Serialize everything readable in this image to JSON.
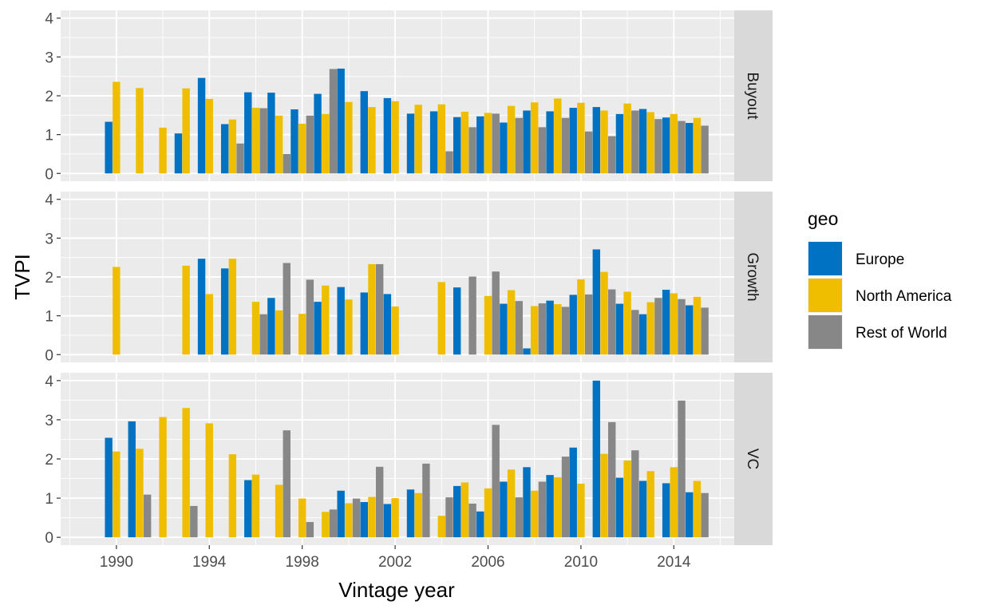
{
  "chart_data": {
    "type": "bar",
    "xlabel": "Vintage year",
    "ylabel": "TVPI",
    "x_ticks": [
      1990,
      1994,
      1998,
      2002,
      2006,
      2010,
      2014
    ],
    "xlim": [
      1987.6,
      2016.6
    ],
    "ylim": [
      -0.2,
      4.2
    ],
    "y_ticks": [
      0,
      1,
      2,
      3,
      4
    ],
    "grid": true,
    "legend": {
      "title": "geo",
      "placement": "right",
      "entries": [
        {
          "name": "Europe",
          "color": "#0072C3"
        },
        {
          "name": "North America",
          "color": "#F0BE00"
        },
        {
          "name": "Rest of World",
          "color": "#878787"
        }
      ]
    },
    "panels": [
      {
        "label": "Buyout",
        "series": [
          {
            "name": "Europe",
            "data": [
              [
                1990,
                1.33
              ],
              [
                1993,
                1.03
              ],
              [
                1994,
                2.46
              ],
              [
                1995,
                1.27
              ],
              [
                1996,
                2.09
              ],
              [
                1997,
                2.08
              ],
              [
                1998,
                1.65
              ],
              [
                1999,
                2.05
              ],
              [
                2000,
                2.7
              ],
              [
                2001,
                2.12
              ],
              [
                2002,
                1.94
              ],
              [
                2003,
                1.54
              ],
              [
                2004,
                1.6
              ],
              [
                2005,
                1.45
              ],
              [
                2006,
                1.47
              ],
              [
                2007,
                1.31
              ],
              [
                2008,
                1.62
              ],
              [
                2009,
                1.6
              ],
              [
                2010,
                1.69
              ],
              [
                2011,
                1.71
              ],
              [
                2012,
                1.53
              ],
              [
                2013,
                1.66
              ],
              [
                2014,
                1.44
              ],
              [
                2015,
                1.3
              ]
            ]
          },
          {
            "name": "North America",
            "data": [
              [
                1990,
                2.36
              ],
              [
                1991,
                2.2
              ],
              [
                1992,
                1.18
              ],
              [
                1993,
                2.19
              ],
              [
                1994,
                1.92
              ],
              [
                1995,
                1.39
              ],
              [
                1996,
                1.69
              ],
              [
                1997,
                1.49
              ],
              [
                1998,
                1.28
              ],
              [
                1999,
                1.53
              ],
              [
                2000,
                1.84
              ],
              [
                2001,
                1.71
              ],
              [
                2002,
                1.86
              ],
              [
                2003,
                1.77
              ],
              [
                2004,
                1.78
              ],
              [
                2005,
                1.59
              ],
              [
                2006,
                1.56
              ],
              [
                2007,
                1.74
              ],
              [
                2008,
                1.83
              ],
              [
                2009,
                1.93
              ],
              [
                2010,
                1.82
              ],
              [
                2011,
                1.62
              ],
              [
                2012,
                1.8
              ],
              [
                2013,
                1.58
              ],
              [
                2014,
                1.53
              ],
              [
                2015,
                1.43
              ]
            ]
          },
          {
            "name": "Rest of World",
            "data": [
              [
                1995,
                0.77
              ],
              [
                1996,
                1.68
              ],
              [
                1997,
                0.5
              ],
              [
                1998,
                1.49
              ],
              [
                1999,
                2.69
              ],
              [
                2004,
                0.57
              ],
              [
                2005,
                1.19
              ],
              [
                2006,
                1.54
              ],
              [
                2007,
                1.43
              ],
              [
                2008,
                1.19
              ],
              [
                2009,
                1.43
              ],
              [
                2010,
                1.08
              ],
              [
                2011,
                0.96
              ],
              [
                2012,
                1.62
              ],
              [
                2013,
                1.4
              ],
              [
                2014,
                1.35
              ],
              [
                2015,
                1.23
              ]
            ]
          }
        ]
      },
      {
        "label": "Growth",
        "series": [
          {
            "name": "Europe",
            "data": [
              [
                1994,
                2.47
              ],
              [
                1995,
                2.22
              ],
              [
                1997,
                1.46
              ],
              [
                1999,
                1.36
              ],
              [
                2000,
                1.74
              ],
              [
                2001,
                1.6
              ],
              [
                2002,
                1.56
              ],
              [
                2005,
                1.73
              ],
              [
                2007,
                1.31
              ],
              [
                2008,
                0.16
              ],
              [
                2009,
                1.39
              ],
              [
                2010,
                1.54
              ],
              [
                2011,
                2.71
              ],
              [
                2012,
                1.31
              ],
              [
                2013,
                1.04
              ],
              [
                2014,
                1.67
              ],
              [
                2015,
                1.27
              ]
            ]
          },
          {
            "name": "North America",
            "data": [
              [
                1990,
                2.26
              ],
              [
                1993,
                2.29
              ],
              [
                1994,
                1.56
              ],
              [
                1995,
                2.47
              ],
              [
                1996,
                1.36
              ],
              [
                1997,
                1.14
              ],
              [
                1998,
                1.05
              ],
              [
                1999,
                1.78
              ],
              [
                2000,
                1.42
              ],
              [
                2001,
                2.33
              ],
              [
                2002,
                1.24
              ],
              [
                2004,
                1.87
              ],
              [
                2006,
                1.51
              ],
              [
                2007,
                1.66
              ],
              [
                2008,
                1.25
              ],
              [
                2009,
                1.3
              ],
              [
                2010,
                1.94
              ],
              [
                2011,
                2.13
              ],
              [
                2012,
                1.62
              ],
              [
                2013,
                1.35
              ],
              [
                2014,
                1.58
              ],
              [
                2015,
                1.49
              ]
            ]
          },
          {
            "name": "Rest of World",
            "data": [
              [
                1996,
                1.04
              ],
              [
                1997,
                2.36
              ],
              [
                1998,
                1.93
              ],
              [
                2001,
                2.33
              ],
              [
                2005,
                2.01
              ],
              [
                2006,
                2.14
              ],
              [
                2007,
                1.38
              ],
              [
                2008,
                1.32
              ],
              [
                2009,
                1.23
              ],
              [
                2010,
                1.55
              ],
              [
                2011,
                1.68
              ],
              [
                2012,
                1.15
              ],
              [
                2013,
                1.46
              ],
              [
                2014,
                1.43
              ],
              [
                2015,
                1.21
              ]
            ]
          }
        ]
      },
      {
        "label": "VC",
        "series": [
          {
            "name": "Europe",
            "data": [
              [
                1990,
                2.54
              ],
              [
                1991,
                2.96
              ],
              [
                1996,
                1.46
              ],
              [
                2000,
                1.19
              ],
              [
                2001,
                0.9
              ],
              [
                2002,
                0.85
              ],
              [
                2003,
                1.22
              ],
              [
                2005,
                1.31
              ],
              [
                2006,
                0.66
              ],
              [
                2007,
                1.42
              ],
              [
                2008,
                1.79
              ],
              [
                2009,
                1.59
              ],
              [
                2010,
                2.29
              ],
              [
                2011,
                4.0
              ],
              [
                2012,
                1.52
              ],
              [
                2013,
                1.44
              ],
              [
                2014,
                1.38
              ],
              [
                2015,
                1.15
              ]
            ]
          },
          {
            "name": "North America",
            "data": [
              [
                1990,
                2.19
              ],
              [
                1991,
                2.26
              ],
              [
                1992,
                3.07
              ],
              [
                1993,
                3.3
              ],
              [
                1994,
                2.91
              ],
              [
                1995,
                2.12
              ],
              [
                1996,
                1.6
              ],
              [
                1997,
                1.34
              ],
              [
                1998,
                0.99
              ],
              [
                1999,
                0.65
              ],
              [
                2000,
                0.87
              ],
              [
                2001,
                1.03
              ],
              [
                2002,
                1.0
              ],
              [
                2003,
                1.13
              ],
              [
                2004,
                0.55
              ],
              [
                2005,
                1.4
              ],
              [
                2006,
                1.25
              ],
              [
                2007,
                1.73
              ],
              [
                2008,
                1.19
              ],
              [
                2009,
                1.53
              ],
              [
                2010,
                1.37
              ],
              [
                2011,
                2.13
              ],
              [
                2012,
                1.96
              ],
              [
                2013,
                1.69
              ],
              [
                2014,
                1.79
              ],
              [
                2015,
                1.44
              ]
            ]
          },
          {
            "name": "Rest of World",
            "data": [
              [
                1991,
                1.09
              ],
              [
                1993,
                0.8
              ],
              [
                1997,
                2.73
              ],
              [
                1998,
                0.39
              ],
              [
                1999,
                0.71
              ],
              [
                2000,
                0.99
              ],
              [
                2001,
                1.8
              ],
              [
                2003,
                1.88
              ],
              [
                2004,
                1.02
              ],
              [
                2005,
                0.86
              ],
              [
                2006,
                2.87
              ],
              [
                2007,
                1.02
              ],
              [
                2008,
                1.42
              ],
              [
                2009,
                2.06
              ],
              [
                2011,
                2.94
              ],
              [
                2012,
                2.22
              ],
              [
                2014,
                3.49
              ],
              [
                2015,
                1.13
              ]
            ]
          }
        ]
      }
    ]
  }
}
